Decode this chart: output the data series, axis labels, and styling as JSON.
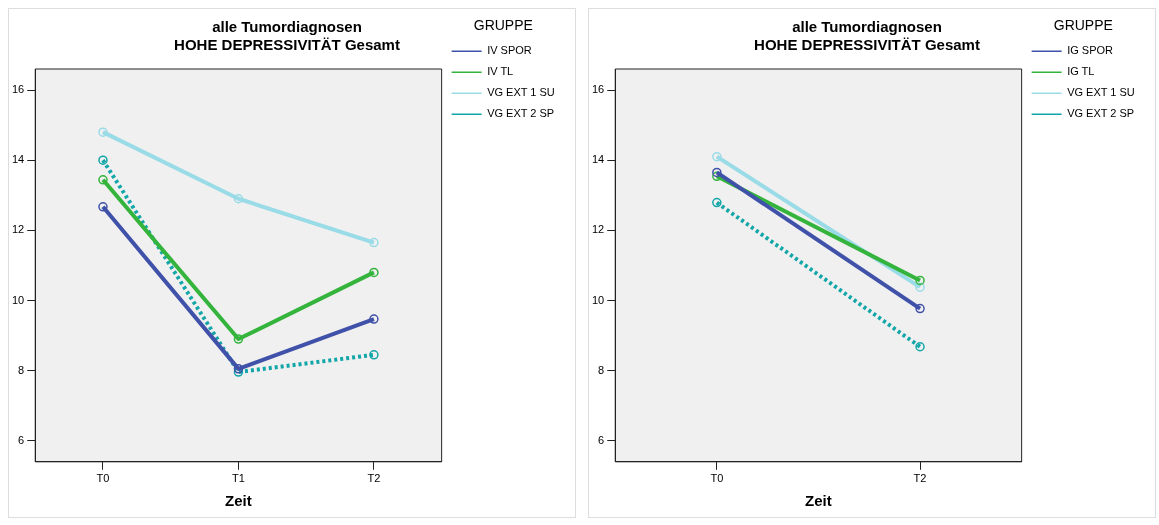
{
  "chart_data": [
    {
      "type": "line",
      "title": "alle Tumordiagnosen\nHOHE DEPRESSIVITÄT Gesamt",
      "xlabel": "Zeit",
      "categories": [
        "T0",
        "T1",
        "T2"
      ],
      "ylim": [
        5.4,
        16.6
      ],
      "yticks": [
        6,
        8,
        10,
        12,
        14,
        16
      ],
      "grid": false,
      "legend": "right",
      "legend_title": "GRUPPE",
      "marker": "circle",
      "series": [
        {
          "name": "IV SPOR",
          "color": "#3f51a8",
          "values": [
            12.67,
            8.05,
            9.47
          ]
        },
        {
          "name": "IV TL",
          "color": "#34b43c",
          "values": [
            13.44,
            8.9,
            10.8
          ]
        },
        {
          "name": "VG EXT 1 SU",
          "color": "#99dbe6",
          "values": [
            14.8,
            12.9,
            11.65
          ]
        },
        {
          "name": "VG EXT 2 SP",
          "color": "#13a6a8",
          "values": [
            14.0,
            7.96,
            8.45
          ],
          "line_style": "dotted"
        }
      ]
    },
    {
      "type": "line",
      "title": "alle Tumordiagnosen\nHOHE DEPRESSIVITÄT Gesamt",
      "xlabel": "Zeit",
      "categories": [
        "T0",
        "T2"
      ],
      "ylim": [
        5.4,
        16.6
      ],
      "yticks": [
        6,
        8,
        10,
        12,
        14,
        16
      ],
      "grid": false,
      "legend": "right",
      "legend_title": "GRUPPE",
      "marker": "circle",
      "series": [
        {
          "name": "IG SPOR",
          "color": "#3f51a8",
          "values": [
            13.65,
            9.77
          ]
        },
        {
          "name": "IG TL",
          "color": "#34b43c",
          "values": [
            13.54,
            10.57
          ]
        },
        {
          "name": "VG EXT 1 SU",
          "color": "#99dbe6",
          "values": [
            14.1,
            10.38
          ]
        },
        {
          "name": "VG EXT 2 SP",
          "color": "#13a6a8",
          "values": [
            12.79,
            8.68
          ],
          "line_style": "dotted"
        }
      ]
    }
  ]
}
